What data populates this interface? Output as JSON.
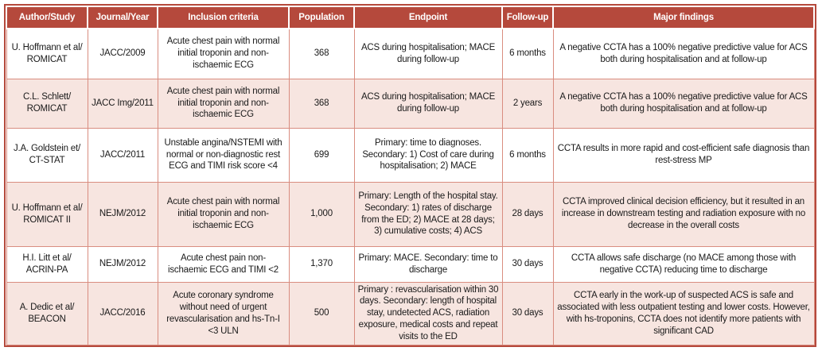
{
  "colors": {
    "header_bg": "#b5493c",
    "header_text": "#ffffff",
    "outer_border": "#b5493c",
    "inner_border": "#d98d80",
    "alt_row_bg": "#f7e5e0",
    "body_text": "#1a1a1a"
  },
  "table": {
    "columns": [
      "Author/Study",
      "Journal/Year",
      "Inclusion criteria",
      "Population",
      "Endpoint",
      "Follow-up",
      "Major findings"
    ],
    "rows": [
      {
        "author": "U. Hoffmann et al/",
        "study": "ROMICAT",
        "journal_year": "JACC/2009",
        "inclusion_criteria": "Acute chest pain with normal initial troponin and non-ischaemic ECG",
        "population": "368",
        "endpoint": "ACS during hospitalisation; MACE during follow-up",
        "follow_up": "6 months",
        "major_findings": "A negative CCTA has a 100% negative predictive value for ACS both during hospitalisation and at follow-up"
      },
      {
        "author": "C.L. Schlett/",
        "study": "ROMICAT",
        "journal_year": "JACC Img/2011",
        "inclusion_criteria": "Acute chest pain with normal initial troponin and non-ischaemic ECG",
        "population": "368",
        "endpoint": "ACS during hospitalisation; MACE during follow-up",
        "follow_up": "2 years",
        "major_findings": "A negative CCTA has a 100% negative predictive value for ACS both during hospitalisation and at follow-up"
      },
      {
        "author": "J.A. Goldstein et/",
        "study": "CT-STAT",
        "journal_year": "JACC/2011",
        "inclusion_criteria": "Unstable angina/NSTEMI with normal or non-diagnostic rest ECG and TIMI risk score <4",
        "population": "699",
        "endpoint": "Primary: time to diagnoses. Secondary: 1) Cost of care during hospitalisation; 2) MACE",
        "follow_up": "6 months",
        "major_findings": "CCTA results in more rapid and cost-efficient safe diagnosis than rest-stress MP"
      },
      {
        "author": "U. Hoffmann et al/",
        "study": "ROMICAT II",
        "journal_year": "NEJM/2012",
        "inclusion_criteria": "Acute chest pain with normal initial troponin and non-ischaemic ECG",
        "population": "1,000",
        "endpoint": "Primary: Length of the hospital stay. Secondary: 1) rates of discharge from the ED; 2) MACE at 28 days; 3) cumulative costs; 4) ACS",
        "follow_up": "28 days",
        "major_findings": "CCTA improved clinical decision efficiency, but it resulted in an increase in downstream testing and radiation exposure with no decrease in the overall costs"
      },
      {
        "author": "H.I. Litt et al/",
        "study": "ACRIN-PA",
        "journal_year": "NEJM/2012",
        "inclusion_criteria": "Acute chest pain non-ischaemic ECG and TIMI <2",
        "population": "1,370",
        "endpoint": "Primary: MACE. Secondary: time to discharge",
        "follow_up": "30 days",
        "major_findings": "CCTA allows safe discharge (no MACE among those with negative CCTA) reducing time to discharge"
      },
      {
        "author": "A. Dedic et al/",
        "study": "BEACON",
        "journal_year": "JACC/2016",
        "inclusion_criteria": "Acute coronary syndrome without need of urgent revascularisation and hs-Tn-I <3 ULN",
        "population": "500",
        "endpoint": "Primary : revascularisation within 30 days. Secondary: length of hospital stay, undetected ACS, radiation exposure, medical costs and repeat visits to the ED",
        "follow_up": "30 days",
        "major_findings": "CCTA early in the work-up of suspected ACS is safe and associated with less outpatient testing and lower costs. However, with hs-troponins, CCTA does not identify more patients with significant CAD"
      }
    ]
  }
}
